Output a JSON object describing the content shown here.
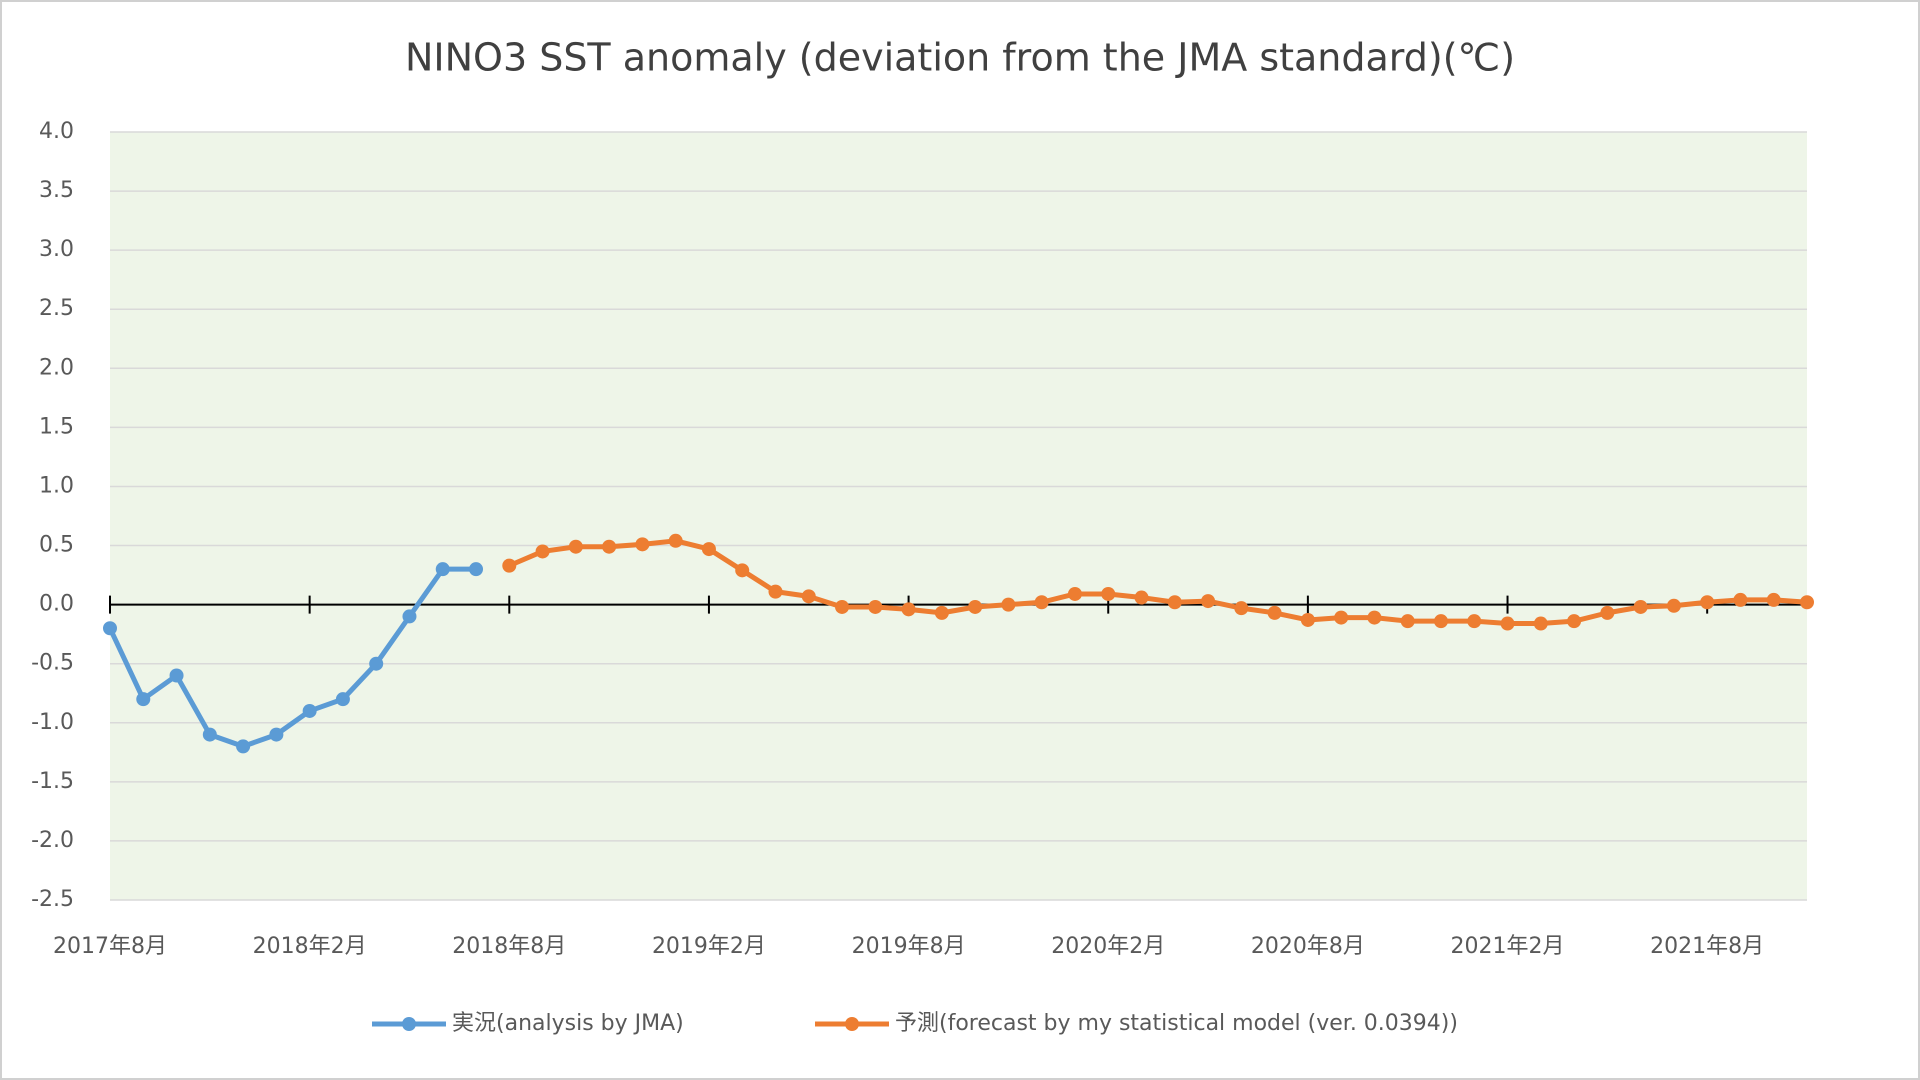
{
  "chart_data": {
    "type": "line",
    "title": "NINO3 SST anomaly (deviation from the JMA standard)(℃)",
    "categories": [
      "2017年8月",
      null,
      null,
      null,
      null,
      null,
      "2018年2月",
      null,
      null,
      null,
      null,
      null,
      "2018年8月",
      null,
      null,
      null,
      null,
      null,
      "2019年2月",
      null,
      null,
      null,
      null,
      null,
      "2019年8月",
      null,
      null,
      null,
      null,
      null,
      "2020年2月",
      null,
      null,
      null,
      null,
      null,
      "2020年8月",
      null,
      null,
      null,
      null,
      null,
      "2021年2月",
      null,
      null,
      null,
      null,
      null,
      "2021年8月",
      null,
      null,
      null
    ],
    "series": [
      {
        "name": "実況(analysis by JMA)",
        "color": "#5b9bd5",
        "values": [
          -0.2,
          -0.8,
          -0.6,
          -1.1,
          -1.2,
          -1.1,
          -0.9,
          -0.8,
          -0.5,
          -0.1,
          0.3,
          0.3,
          null,
          null,
          null,
          null,
          null,
          null,
          null,
          null,
          null,
          null,
          null,
          null,
          null,
          null,
          null,
          null,
          null,
          null,
          null,
          null,
          null,
          null,
          null,
          null,
          null,
          null,
          null,
          null,
          null,
          null,
          null,
          null,
          null,
          null,
          null,
          null,
          null,
          null,
          null,
          null
        ]
      },
      {
        "name": "予測(forecast by my statistical model (ver. 0.0394))",
        "color": "#ed7d31",
        "values": [
          null,
          null,
          null,
          null,
          null,
          null,
          null,
          null,
          null,
          null,
          null,
          null,
          0.33,
          0.45,
          0.49,
          0.49,
          0.51,
          0.54,
          0.47,
          0.29,
          0.11,
          0.07,
          -0.02,
          -0.02,
          -0.04,
          -0.07,
          -0.02,
          0.0,
          0.02,
          0.09,
          0.09,
          0.06,
          0.02,
          0.03,
          -0.03,
          -0.07,
          -0.13,
          -0.11,
          -0.11,
          -0.14,
          -0.14,
          -0.14,
          -0.16,
          -0.16,
          -0.14,
          -0.07,
          -0.02,
          -0.01,
          0.02,
          0.04,
          0.04,
          0.02
        ]
      }
    ],
    "ylim": [
      -2.5,
      4.0
    ],
    "yticks": [
      -2.5,
      {
        "value": -2,
        "label": "-2.0"
      },
      -1.5,
      {
        "value": -1,
        "label": "-1.0"
      },
      -0.5,
      {
        "value": 0,
        "label": "0.0"
      },
      0.5,
      {
        "value": 1,
        "label": "1.0"
      },
      1.5,
      {
        "value": 2,
        "label": "2.0"
      },
      2.5,
      {
        "value": 3,
        "label": "3.0"
      },
      3.5,
      {
        "value": 4,
        "label": "4.0"
      }
    ],
    "grid": true,
    "legend": "bottom",
    "plot_background": "#eef5e8"
  }
}
